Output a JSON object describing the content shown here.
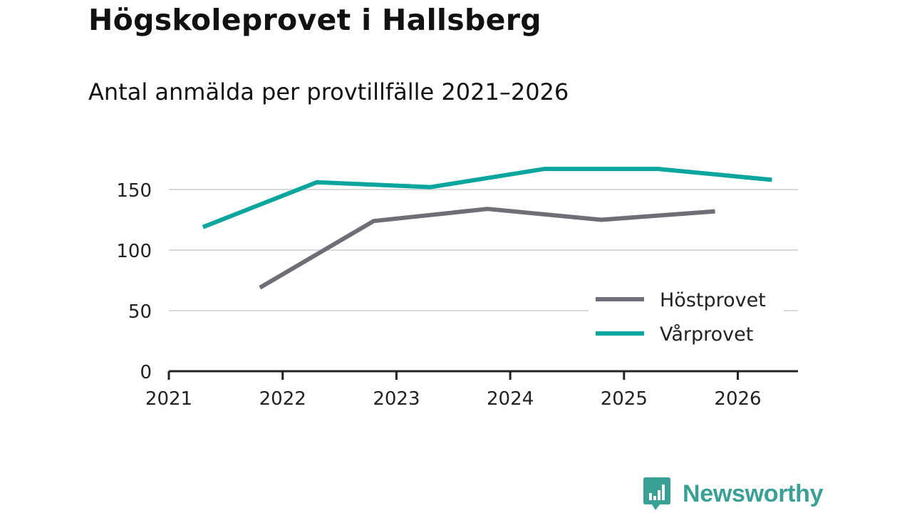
{
  "header": {
    "title": "Högskoleprovet i Hallsberg",
    "subtitle": "Antal anmälda per provtillfälle 2021–2026"
  },
  "brand": {
    "name": "Newsworthy",
    "color": "#3a9f95"
  },
  "colors": {
    "host": "#6e6e76",
    "var": "#0aa59c",
    "grid": "#d9d9d9",
    "axis": "#222222"
  },
  "chart_data": {
    "type": "line",
    "title": "Högskoleprovet i Hallsberg",
    "subtitle": "Antal anmälda per provtillfälle 2021–2026",
    "xlabel": "",
    "ylabel": "",
    "xlim": [
      2021,
      2026.3
    ],
    "ylim": [
      0,
      175
    ],
    "x_ticks": [
      2021,
      2022,
      2023,
      2024,
      2025,
      2026
    ],
    "y_ticks": [
      0,
      50,
      100,
      150
    ],
    "grid": true,
    "legend_position": "bottom-right",
    "series": [
      {
        "name": "Höstprovet",
        "color": "#6e6e76",
        "x": [
          2021.8,
          2022.8,
          2023.8,
          2024.8,
          2025.8
        ],
        "y": [
          69,
          124,
          134,
          125,
          132
        ]
      },
      {
        "name": "Vårprovet",
        "color": "#0aa59c",
        "x": [
          2021.3,
          2022.3,
          2023.3,
          2024.3,
          2025.3,
          2026.3
        ],
        "y": [
          119,
          156,
          152,
          167,
          167,
          158
        ]
      }
    ]
  }
}
